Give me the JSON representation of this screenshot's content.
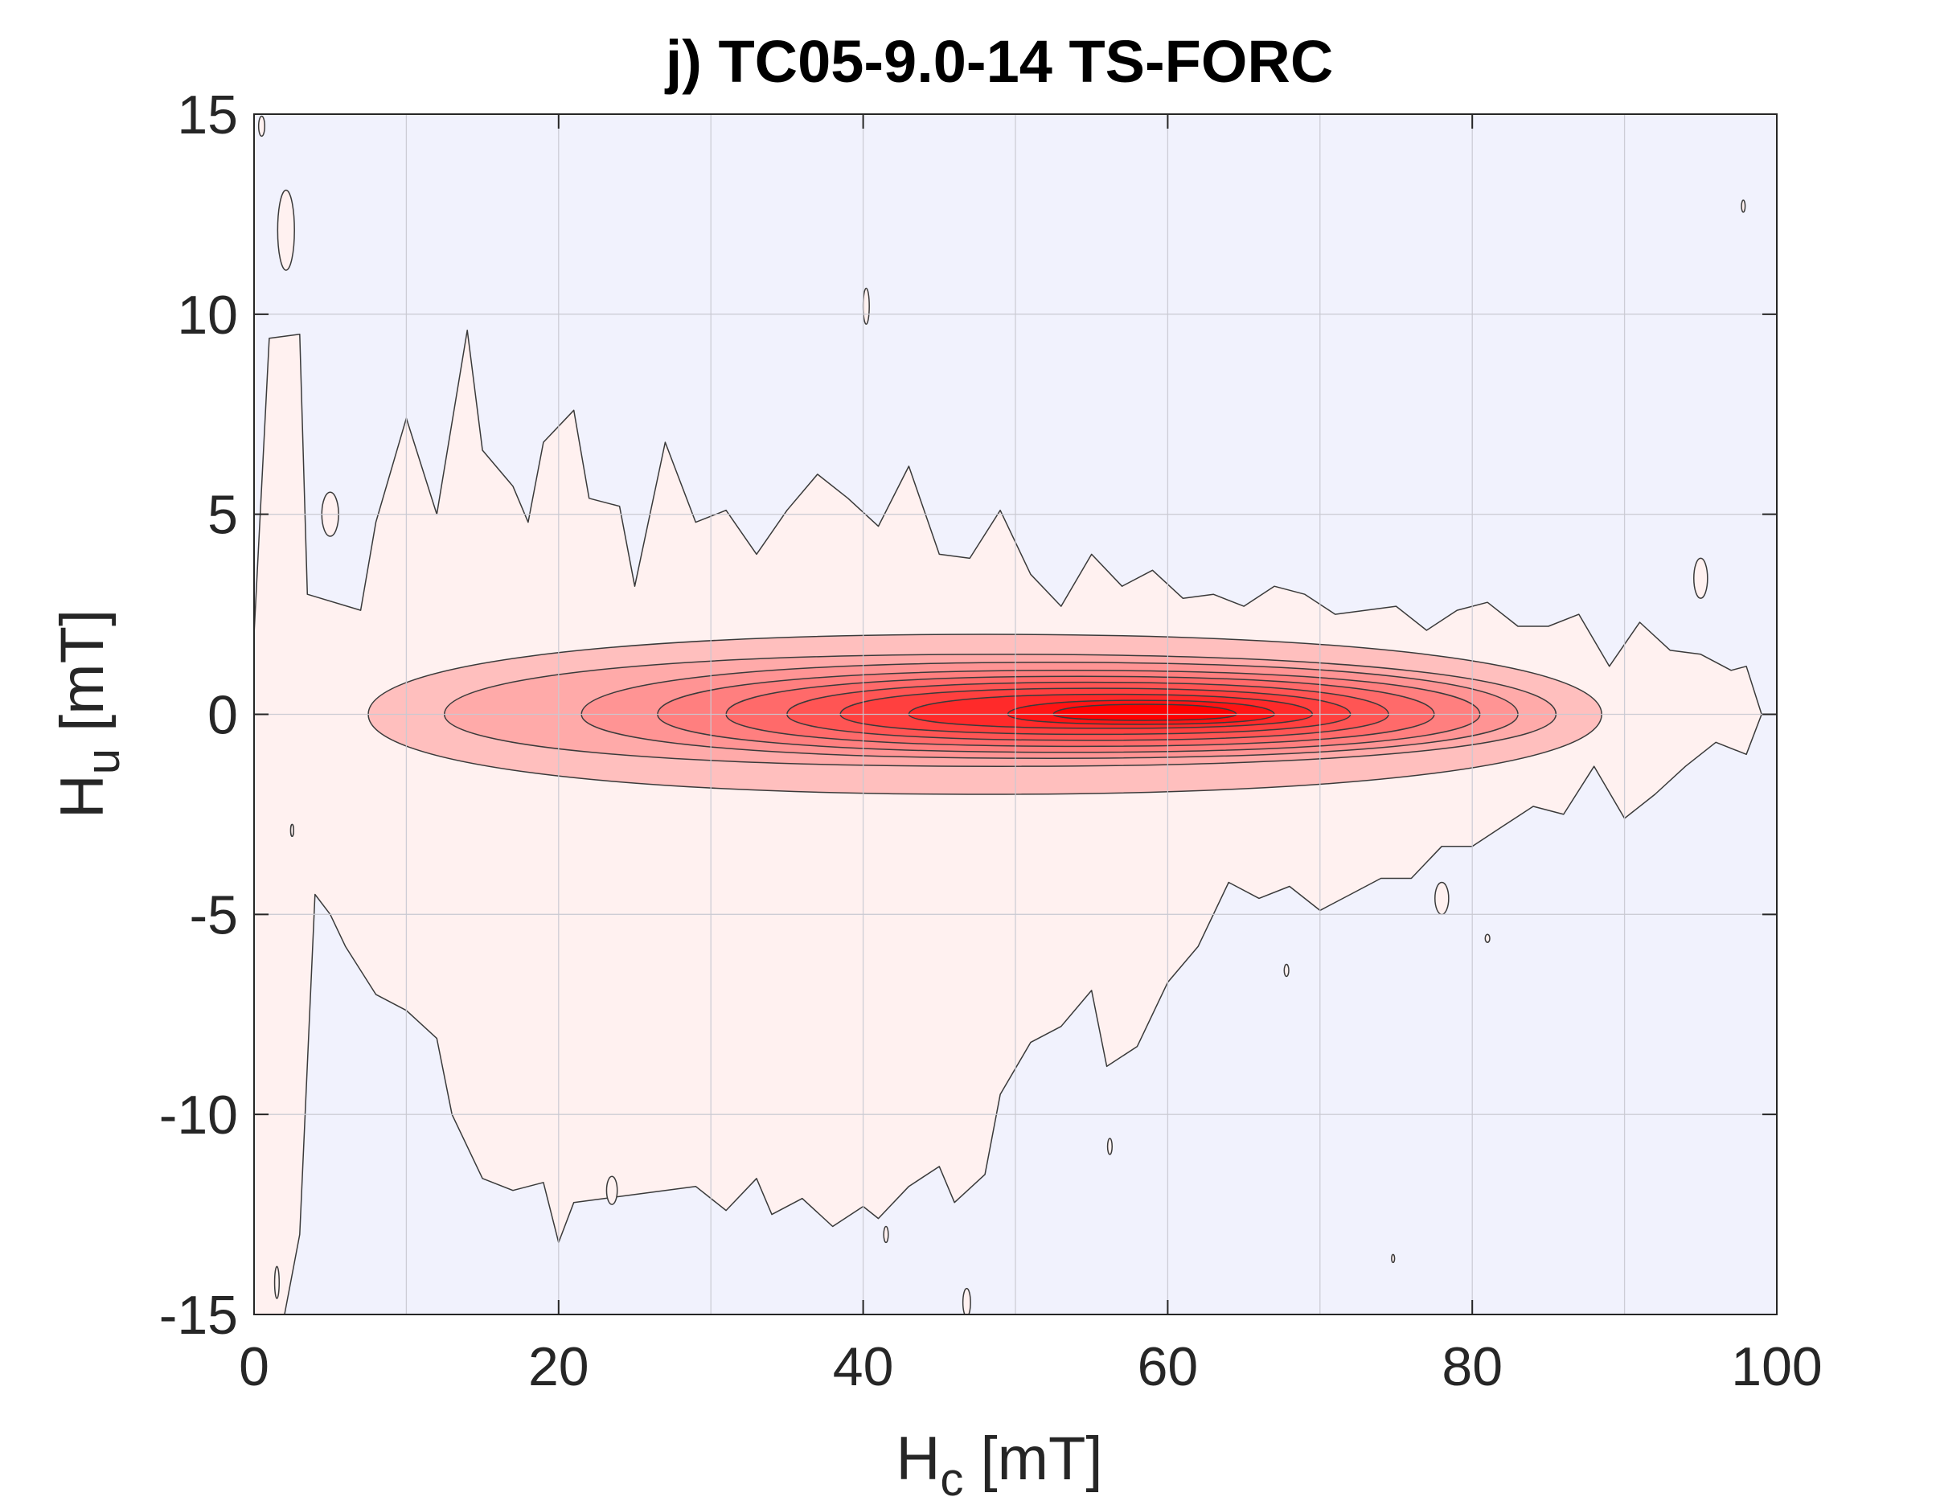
{
  "chart_data": {
    "type": "heatmap",
    "title": "j) TC05-9.0-14 TS-FORC",
    "xlabel": {
      "base": "H",
      "sub": "c",
      "unit": " [mT]"
    },
    "ylabel": {
      "base": "H",
      "sub": "u",
      "unit": " [mT]"
    },
    "xlim": [
      0,
      100
    ],
    "ylim": [
      -15,
      15
    ],
    "xticks": [
      0,
      20,
      40,
      60,
      80,
      100
    ],
    "yticks": [
      -15,
      -10,
      -5,
      0,
      5,
      10,
      15
    ],
    "xtick_labels": [
      "0",
      "20",
      "40",
      "60",
      "80",
      "100"
    ],
    "ytick_labels": [
      "-15",
      "-10",
      "-5",
      "0",
      "5",
      "10",
      "15"
    ],
    "grid": true,
    "grid_x": [
      10,
      20,
      30,
      40,
      50,
      60,
      70,
      80,
      90
    ],
    "grid_y": [
      -10,
      -5,
      0,
      5,
      10
    ],
    "colors": {
      "background": "#f1f2fd",
      "grid": "#c9c9d1",
      "contour_line": "#3a3a3a",
      "low": "#fff1f0",
      "high": "#ff0000"
    },
    "peak": {
      "hc": 58,
      "hu": 0
    },
    "contour_levels": [
      {
        "x": [
          7.5,
          88.5
        ],
        "y": [
          -2.0,
          2.0
        ]
      },
      {
        "x": [
          12.5,
          85.5
        ],
        "y": [
          -1.3,
          1.5
        ]
      },
      {
        "x": [
          21.5,
          83.0
        ],
        "y": [
          -1.1,
          1.3
        ]
      },
      {
        "x": [
          26.5,
          80.5
        ],
        "y": [
          -0.95,
          1.1
        ]
      },
      {
        "x": [
          31.0,
          77.5
        ],
        "y": [
          -0.8,
          0.95
        ]
      },
      {
        "x": [
          35.0,
          74.5
        ],
        "y": [
          -0.65,
          0.8
        ]
      },
      {
        "x": [
          38.5,
          72.0
        ],
        "y": [
          -0.5,
          0.65
        ]
      },
      {
        "x": [
          43.0,
          69.5
        ],
        "y": [
          -0.35,
          0.5
        ]
      },
      {
        "x": [
          49.5,
          67.0
        ],
        "y": [
          -0.25,
          0.35
        ]
      },
      {
        "x": [
          52.5,
          64.5
        ],
        "y": [
          -0.15,
          0.25
        ]
      }
    ],
    "outer_region": {
      "upper": [
        [
          0,
          2.0
        ],
        [
          1,
          9.4
        ],
        [
          3,
          9.5
        ],
        [
          3.5,
          3.0
        ],
        [
          7,
          2.6
        ],
        [
          8,
          4.8
        ],
        [
          10,
          7.4
        ],
        [
          12,
          5.0
        ],
        [
          14,
          9.6
        ],
        [
          15,
          6.6
        ],
        [
          17,
          5.7
        ],
        [
          18,
          4.8
        ],
        [
          19,
          6.8
        ],
        [
          21,
          7.6
        ],
        [
          22,
          5.4
        ],
        [
          24,
          5.2
        ],
        [
          25,
          3.2
        ],
        [
          27,
          6.8
        ],
        [
          29,
          4.8
        ],
        [
          31,
          5.1
        ],
        [
          33,
          4.0
        ],
        [
          35,
          5.1
        ],
        [
          37,
          6.0
        ],
        [
          39,
          5.4
        ],
        [
          41,
          4.7
        ],
        [
          43,
          6.2
        ],
        [
          45,
          4.0
        ],
        [
          47,
          3.9
        ],
        [
          49,
          5.1
        ],
        [
          51,
          3.5
        ],
        [
          53,
          2.7
        ],
        [
          55,
          4.0
        ],
        [
          57,
          3.2
        ],
        [
          59,
          3.6
        ],
        [
          61,
          2.9
        ],
        [
          63,
          3.0
        ],
        [
          65,
          2.7
        ],
        [
          67,
          3.2
        ],
        [
          69,
          3.0
        ],
        [
          71,
          2.5
        ],
        [
          73,
          2.6
        ],
        [
          75,
          2.7
        ],
        [
          77,
          2.1
        ],
        [
          79,
          2.6
        ],
        [
          81,
          2.8
        ],
        [
          83,
          2.2
        ],
        [
          85,
          2.2
        ],
        [
          87,
          2.5
        ],
        [
          89,
          1.2
        ],
        [
          91,
          2.3
        ],
        [
          93,
          1.6
        ],
        [
          95,
          1.5
        ],
        [
          97,
          1.1
        ],
        [
          98,
          1.2
        ],
        [
          99,
          0
        ]
      ],
      "lower": [
        [
          99,
          0
        ],
        [
          98,
          -1.0
        ],
        [
          96,
          -0.7
        ],
        [
          94,
          -1.3
        ],
        [
          92,
          -2.0
        ],
        [
          90,
          -2.6
        ],
        [
          88,
          -1.3
        ],
        [
          86,
          -2.5
        ],
        [
          84,
          -2.3
        ],
        [
          82,
          -2.8
        ],
        [
          80,
          -3.3
        ],
        [
          78,
          -3.3
        ],
        [
          76,
          -4.1
        ],
        [
          74,
          -4.1
        ],
        [
          72,
          -4.5
        ],
        [
          70,
          -4.9
        ],
        [
          68,
          -4.3
        ],
        [
          66,
          -4.6
        ],
        [
          64,
          -4.2
        ],
        [
          62,
          -5.8
        ],
        [
          60,
          -6.7
        ],
        [
          58,
          -8.3
        ],
        [
          56,
          -8.8
        ],
        [
          55,
          -6.9
        ],
        [
          53,
          -7.8
        ],
        [
          51,
          -8.2
        ],
        [
          49,
          -9.5
        ],
        [
          48,
          -11.5
        ],
        [
          46,
          -12.2
        ],
        [
          45,
          -11.3
        ],
        [
          43,
          -11.8
        ],
        [
          41,
          -12.6
        ],
        [
          40,
          -12.3
        ],
        [
          38,
          -12.8
        ],
        [
          36,
          -12.1
        ],
        [
          34,
          -12.5
        ],
        [
          33,
          -11.6
        ],
        [
          31,
          -12.4
        ],
        [
          29,
          -11.8
        ],
        [
          27,
          -11.9
        ],
        [
          25,
          -12.0
        ],
        [
          23,
          -12.1
        ],
        [
          21,
          -12.2
        ],
        [
          20,
          -13.2
        ],
        [
          19,
          -11.7
        ],
        [
          17,
          -11.9
        ],
        [
          15,
          -11.6
        ],
        [
          13,
          -10.0
        ],
        [
          12,
          -8.1
        ],
        [
          10,
          -7.4
        ],
        [
          8,
          -7.0
        ],
        [
          6,
          -5.8
        ],
        [
          5,
          -5.0
        ],
        [
          4,
          -4.5
        ],
        [
          3,
          -13.0
        ],
        [
          2,
          -15.0
        ],
        [
          0,
          -15.0
        ]
      ]
    },
    "small_islands": [
      {
        "cx": 2.1,
        "cy": 12.1,
        "rx": 0.55,
        "ry": 1.0
      },
      {
        "cx": 0.5,
        "cy": 14.7,
        "rx": 0.2,
        "ry": 0.25
      },
      {
        "cx": 40.2,
        "cy": 10.2,
        "rx": 0.2,
        "ry": 0.45
      },
      {
        "cx": 5.0,
        "cy": 5.0,
        "rx": 0.55,
        "ry": 0.55
      },
      {
        "cx": 95.0,
        "cy": 3.4,
        "rx": 0.45,
        "ry": 0.5
      },
      {
        "cx": 97.8,
        "cy": 12.7,
        "rx": 0.12,
        "ry": 0.15
      },
      {
        "cx": 78.0,
        "cy": -4.6,
        "rx": 0.45,
        "ry": 0.4
      },
      {
        "cx": 67.8,
        "cy": -6.4,
        "rx": 0.15,
        "ry": 0.15
      },
      {
        "cx": 81.0,
        "cy": -5.6,
        "rx": 0.15,
        "ry": 0.1
      },
      {
        "cx": 41.5,
        "cy": -13.0,
        "rx": 0.15,
        "ry": 0.2
      },
      {
        "cx": 46.8,
        "cy": -14.7,
        "rx": 0.25,
        "ry": 0.35
      },
      {
        "cx": 56.2,
        "cy": -10.8,
        "rx": 0.15,
        "ry": 0.2
      },
      {
        "cx": 1.5,
        "cy": -14.2,
        "rx": 0.15,
        "ry": 0.4
      },
      {
        "cx": 23.5,
        "cy": -11.9,
        "rx": 0.35,
        "ry": 0.35
      },
      {
        "cx": 2.5,
        "cy": -2.9,
        "rx": 0.1,
        "ry": 0.15
      },
      {
        "cx": 74.8,
        "cy": -13.6,
        "rx": 0.1,
        "ry": 0.1
      }
    ]
  }
}
